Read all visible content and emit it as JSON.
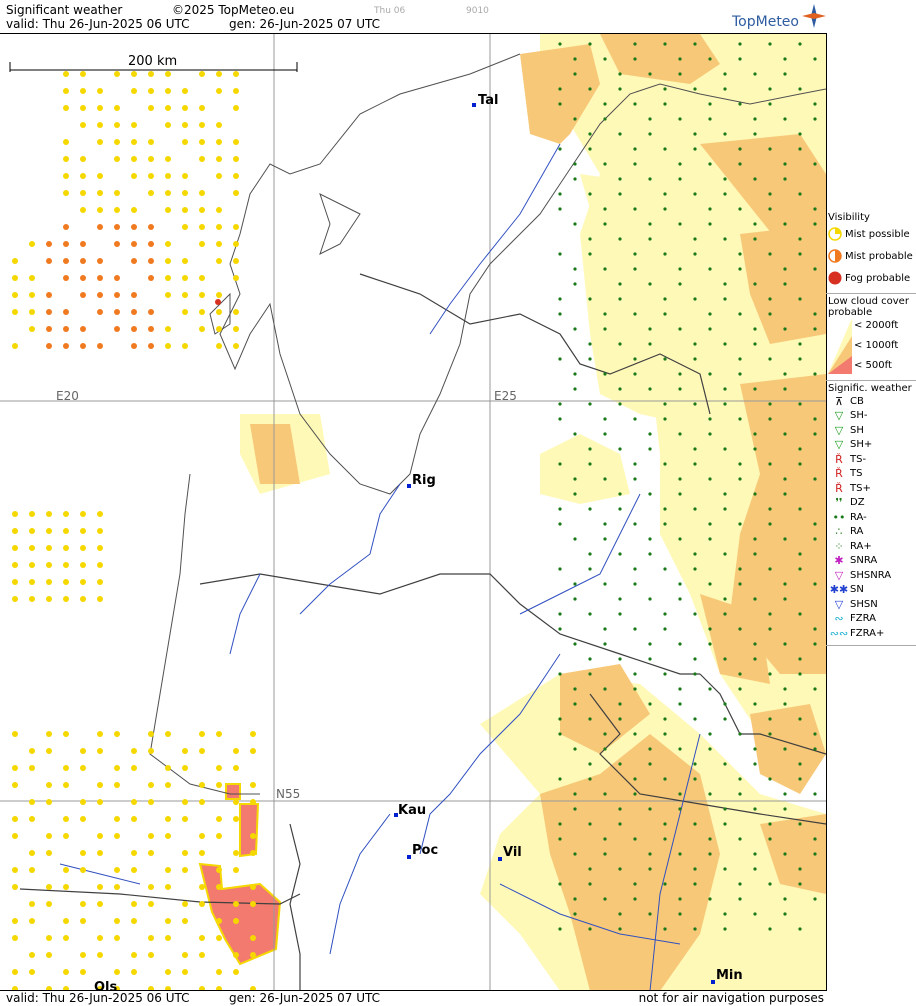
{
  "header": {
    "product": "Significant weather",
    "copyright": "©2025 TopMeteo.eu",
    "valid": "valid:  Thu  26-Jun-2025  06 UTC",
    "gen": "gen: 26-Jun-2025 07 UTC",
    "day_tag": "Thu 06",
    "code": "9010",
    "logo": "TopMeteo"
  },
  "map": {
    "scale_label": "200 km",
    "grid_labels": [
      "E20",
      "E25",
      "N55"
    ],
    "cities": [
      {
        "name": "Tal"
      },
      {
        "name": "Rig"
      },
      {
        "name": "Kau"
      },
      {
        "name": "Poc"
      },
      {
        "name": "Vil"
      },
      {
        "name": "Min"
      },
      {
        "name": "Ols"
      }
    ]
  },
  "legend": {
    "visibility_title": "Visibility",
    "visibility_items": [
      "Mist possible",
      "Mist probable",
      "Fog probable"
    ],
    "cloud_title": "Low cloud cover probable",
    "cloud_items": [
      "< 2000ft",
      "< 1000ft",
      "<  500ft"
    ],
    "wx_title": "Signific. weather",
    "wx_items": [
      "CB",
      "SH-",
      "SH",
      "SH+",
      "TS-",
      "TS",
      "TS+",
      "DZ",
      "RA-",
      "RA",
      "RA+",
      "SNRA",
      "SHSNRA",
      "SN",
      "SHSN",
      "FZRA",
      "FZRA+"
    ],
    "colors": {
      "cloud2000": "#fff9b8",
      "cloud1000": "#f7c878",
      "cloud500": "#f27a6e",
      "mist": "#f5d800",
      "mistprob": "#f07a20",
      "fog": "#d83020",
      "river": "#3050c0",
      "border": "#404040",
      "dz": "#1a7a1a"
    }
  },
  "footer": {
    "valid": "valid:  Thu   26-Jun-2025   06 UTC",
    "gen": "gen: 26-Jun-2025 07 UTC",
    "disclaimer": "not for air navigation purposes"
  }
}
